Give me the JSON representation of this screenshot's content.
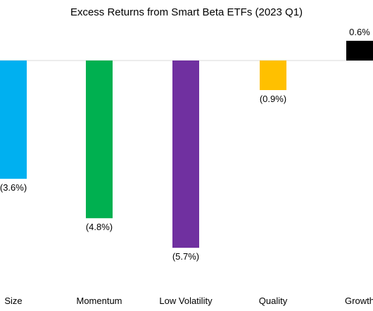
{
  "chart_data": {
    "type": "bar",
    "title": "Excess Returns from Smart Beta ETFs (2023 Q1)",
    "xlabel": "",
    "ylabel": "",
    "ylim": [
      -6.5,
      1.0
    ],
    "grid": false,
    "categories": [
      "Size",
      "Momentum",
      "Low Volatility",
      "Quality",
      "Growth"
    ],
    "values": [
      -3.6,
      -4.8,
      -5.7,
      -0.9,
      0.6
    ],
    "value_labels": [
      "(3.6%)",
      "(4.8%)",
      "(5.7%)",
      "(0.9%)",
      "0.6%"
    ],
    "colors": [
      "#00b0f0",
      "#00b050",
      "#7030a0",
      "#ffc000",
      "#000000"
    ]
  }
}
